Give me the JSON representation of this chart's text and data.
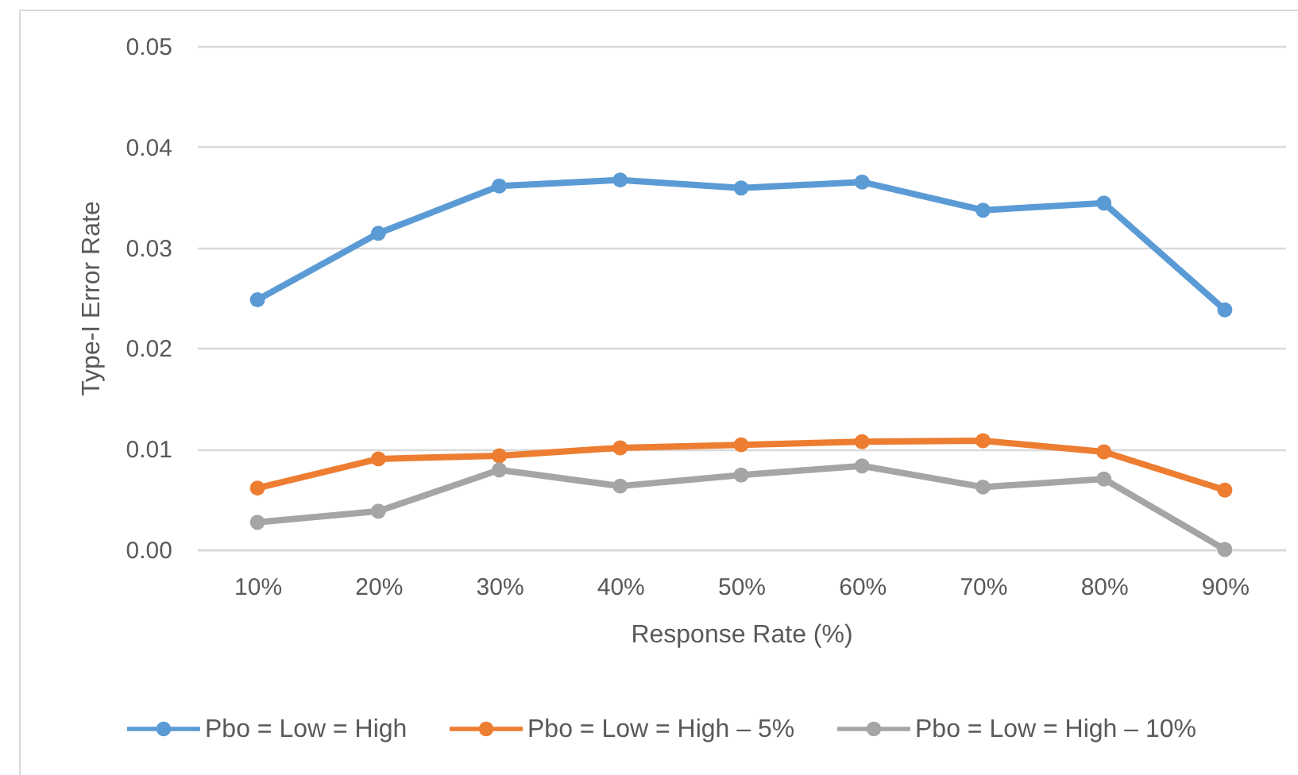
{
  "chart_data": {
    "type": "line",
    "xlabel": "Response Rate (%)",
    "ylabel": "Type-I Error Rate",
    "categories": [
      "10%",
      "20%",
      "30%",
      "40%",
      "50%",
      "60%",
      "70%",
      "80%",
      "90%"
    ],
    "series": [
      {
        "name": "Pbo = Low = High",
        "color": "#5b9bd5",
        "values": [
          0.0248,
          0.0314,
          0.0361,
          0.0367,
          0.0359,
          0.0365,
          0.0337,
          0.0344,
          0.0238
        ]
      },
      {
        "name": "Pbo = Low = High – 5%",
        "color": "#ed7d31",
        "values": [
          0.0061,
          0.009,
          0.0093,
          0.0101,
          0.0104,
          0.0107,
          0.0108,
          0.0097,
          0.0059
        ]
      },
      {
        "name": "Pbo = Low = High – 10%",
        "color": "#a5a5a5",
        "values": [
          0.0027,
          0.0038,
          0.0079,
          0.0063,
          0.0074,
          0.0083,
          0.0062,
          0.007,
          0
        ]
      }
    ],
    "ylim": [
      0,
      0.05
    ],
    "yticks": [
      {
        "value": 0,
        "label": "0.00"
      },
      0.01,
      0.02,
      0.03,
      0.04,
      0.05
    ],
    "grid": "y",
    "legend": "bottom",
    "marker": "circle",
    "line_style": "solid"
  }
}
